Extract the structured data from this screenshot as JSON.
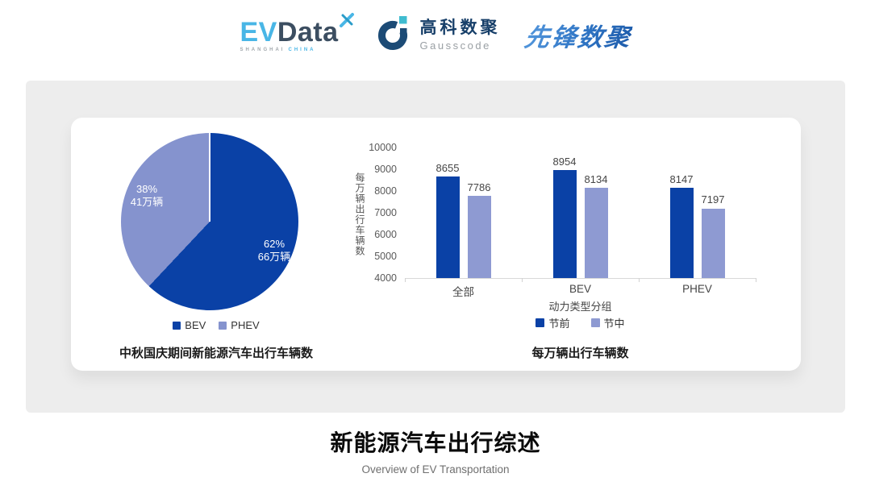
{
  "header": {
    "evdata_logo": {
      "ev": "EV",
      "data": "Data",
      "sub_shanghai": "SHANGHAI",
      "sub_china": "CHINA",
      "ev_color": "#49b6e6",
      "data_color": "#3c4e61"
    },
    "gausscode_logo": {
      "name_cn": "高科数聚",
      "name_en": "Gausscode",
      "mark_dark_color": "#1c4b76",
      "mark_teal_color": "#40bcd0"
    },
    "xianfeng_logo": {
      "text": "先锋数聚",
      "color": "#2e74c4"
    }
  },
  "chart_data": [
    {
      "type": "pie",
      "title": "中秋国庆期间新能源汽车出行车辆数",
      "slices": [
        {
          "label": "BEV",
          "percent": 62,
          "percent_text": "62%",
          "amount_text": "66万辆",
          "color": "#0a41a6"
        },
        {
          "label": "PHEV",
          "percent": 38,
          "percent_text": "38%",
          "amount_text": "41万辆",
          "color": "#8593ce"
        }
      ],
      "start_angle_deg": 0,
      "direction": "clockwise",
      "legend_position": "bottom"
    },
    {
      "type": "bar",
      "title": "每万辆出行车辆数",
      "categories": [
        "全部",
        "BEV",
        "PHEV"
      ],
      "series": [
        {
          "name": "节前",
          "values": [
            8655,
            8954,
            8147
          ],
          "color": "#0a41a6"
        },
        {
          "name": "节中",
          "values": [
            7786,
            8134,
            7197
          ],
          "color": "#8e9ad2"
        }
      ],
      "xlabel": "动力类型分组",
      "ylabel": "每万辆出行车辆数",
      "ylim": [
        4000,
        10000
      ],
      "yticks": [
        10000,
        9000,
        8000,
        7000,
        6000,
        5000,
        4000
      ],
      "grid": false,
      "legend_position": "bottom"
    }
  ],
  "footer": {
    "title": "新能源汽车出行综述",
    "subtitle": "Overview of EV Transportation"
  }
}
